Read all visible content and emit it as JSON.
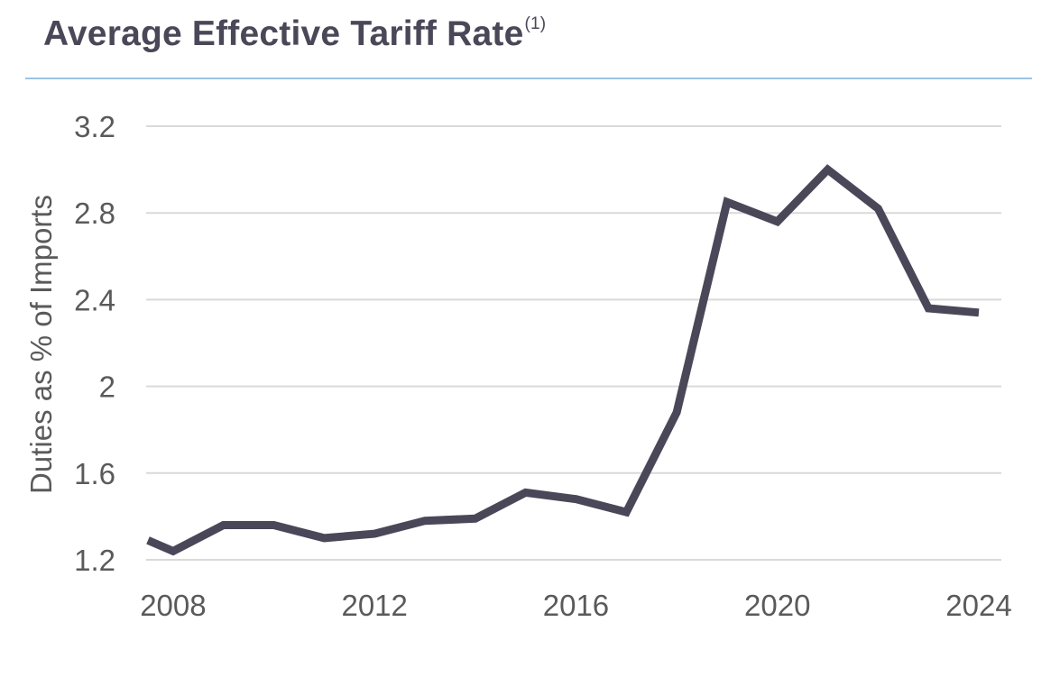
{
  "title": {
    "text": "Average Effective Tariff Rate",
    "superscript": "(1)"
  },
  "colors": {
    "title": "#4a4858",
    "rule": "#9dc3e4",
    "line": "#4a4858",
    "grid": "#d9d9d9",
    "tick_text": "#5a5a5a"
  },
  "chart_data": {
    "type": "line",
    "title": "Average Effective Tariff Rate",
    "xlabel": "",
    "ylabel": "Duties as % of Imports",
    "xlim": [
      2007.5,
      2025
    ],
    "ylim": [
      1.2,
      3.2
    ],
    "x_ticks": [
      2008,
      2012,
      2016,
      2020,
      2024
    ],
    "x_tick_labels": [
      "2008",
      "2012",
      "2016",
      "2020",
      "2024"
    ],
    "y_ticks": [
      1.2,
      1.6,
      2,
      2.4,
      2.8,
      3.2
    ],
    "y_tick_labels": [
      "1.2",
      "1.6",
      "2",
      "2.4",
      "2.8",
      "3.2"
    ],
    "grid": "horizontal",
    "legend": "none",
    "series": [
      {
        "x": [
          2007.5,
          2008,
          2009,
          2010,
          2011,
          2012,
          2013,
          2014,
          2015,
          2016,
          2017,
          2018,
          2019,
          2020,
          2021,
          2022,
          2023,
          2024
        ],
        "values": [
          1.29,
          1.24,
          1.36,
          1.36,
          1.3,
          1.32,
          1.38,
          1.39,
          1.51,
          1.48,
          1.42,
          1.88,
          2.85,
          2.76,
          3.0,
          2.82,
          2.36,
          2.34
        ]
      }
    ]
  }
}
